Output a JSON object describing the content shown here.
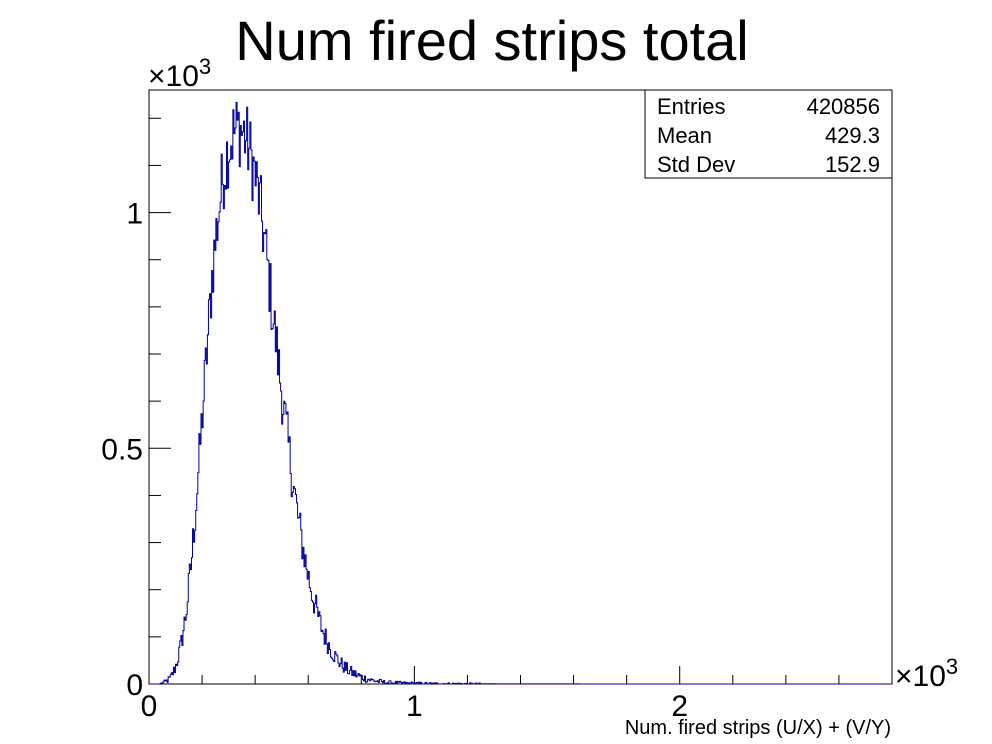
{
  "chart_data": {
    "type": "histogram",
    "title": "Num fired strips total",
    "xlabel": "Num. fired strips (U/X) + (V/Y)",
    "ylabel": "",
    "x_multiplier": "×10",
    "x_multiplier_exp": "3",
    "y_multiplier": "×10",
    "y_multiplier_exp": "3",
    "xlim": [
      0,
      2.8
    ],
    "ylim": [
      0,
      1.26
    ],
    "x_ticks": [
      {
        "value": 0,
        "label": "0"
      },
      {
        "value": 1,
        "label": "1"
      },
      {
        "value": 2,
        "label": "2"
      }
    ],
    "y_ticks": [
      {
        "value": 0,
        "label": "0"
      },
      {
        "value": 0.5,
        "label": "0.5"
      },
      {
        "value": 1,
        "label": "1"
      }
    ],
    "line_color": "#000099",
    "grid": false,
    "stats": {
      "rows": [
        {
          "label": "Entries",
          "value": "420856"
        },
        {
          "label": "Mean",
          "value": "429.3"
        },
        {
          "label": "Std Dev",
          "value": "152.9"
        }
      ]
    },
    "series": [
      {
        "x": [
          0.0,
          0.04,
          0.06,
          0.08,
          0.1,
          0.12,
          0.14,
          0.16,
          0.18,
          0.2,
          0.22,
          0.24,
          0.26,
          0.28,
          0.3,
          0.32,
          0.34,
          0.36,
          0.38,
          0.4,
          0.42,
          0.44,
          0.46,
          0.48,
          0.5,
          0.52,
          0.54,
          0.56,
          0.58,
          0.6,
          0.62,
          0.64,
          0.66,
          0.68,
          0.7,
          0.72,
          0.74,
          0.76,
          0.78,
          0.8,
          0.82,
          0.84,
          0.86,
          0.88,
          0.9,
          0.95,
          1.0,
          1.05,
          1.1,
          1.2,
          1.3,
          1.4,
          1.5,
          1.6,
          1.7,
          1.8,
          2.0,
          2.2,
          2.5,
          2.8
        ],
        "y": [
          0.0,
          0.0,
          0.004,
          0.012,
          0.035,
          0.08,
          0.15,
          0.26,
          0.4,
          0.56,
          0.72,
          0.88,
          0.99,
          1.08,
          1.14,
          1.17,
          1.18,
          1.165,
          1.13,
          1.08,
          1.01,
          0.92,
          0.82,
          0.72,
          0.62,
          0.53,
          0.44,
          0.36,
          0.29,
          0.23,
          0.18,
          0.138,
          0.105,
          0.08,
          0.06,
          0.045,
          0.034,
          0.026,
          0.02,
          0.015,
          0.011,
          0.008,
          0.006,
          0.004,
          0.003,
          0.002,
          0.0015,
          0.001,
          0.0008,
          0.0006,
          0.0004,
          0.0003,
          0.0002,
          0.00015,
          0.0001,
          8e-05,
          5e-05,
          3e-05,
          2e-05,
          0.0
        ]
      }
    ]
  }
}
